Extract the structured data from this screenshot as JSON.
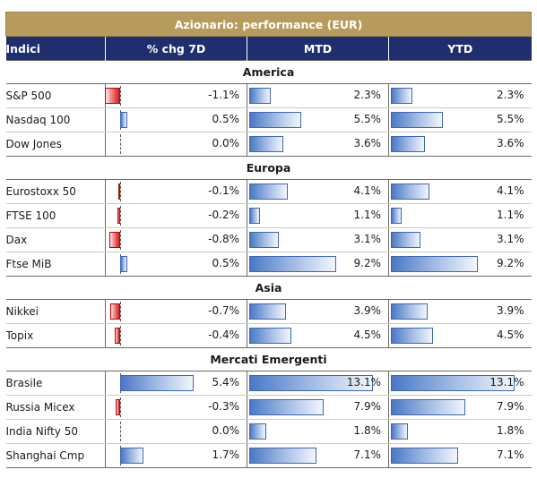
{
  "title": "Azionario: performance (EUR)",
  "headers": {
    "index": "Indici",
    "chg7d": "% chg 7D",
    "mtd": "MTD",
    "ytd": "YTD"
  },
  "colors": {
    "header_bg": "#1f2e6e",
    "title_bg": "#b79b5c",
    "positive_bar": "#4a78c6",
    "negative_bar": "#d41f1f"
  },
  "sections": [
    {
      "name": "America",
      "rows": [
        {
          "index": "S&P 500",
          "chg7d": -1.1,
          "chg7d_label": "-1.1%",
          "mtd": 2.3,
          "mtd_label": "2.3%",
          "ytd": 2.3,
          "ytd_label": "2.3%"
        },
        {
          "index": "Nasdaq 100",
          "chg7d": 0.5,
          "chg7d_label": "0.5%",
          "mtd": 5.5,
          "mtd_label": "5.5%",
          "ytd": 5.5,
          "ytd_label": "5.5%"
        },
        {
          "index": "Dow Jones",
          "chg7d": 0.0,
          "chg7d_label": "0.0%",
          "mtd": 3.6,
          "mtd_label": "3.6%",
          "ytd": 3.6,
          "ytd_label": "3.6%"
        }
      ]
    },
    {
      "name": "Europa",
      "rows": [
        {
          "index": "Eurostoxx 50",
          "chg7d": -0.1,
          "chg7d_label": "-0.1%",
          "mtd": 4.1,
          "mtd_label": "4.1%",
          "ytd": 4.1,
          "ytd_label": "4.1%"
        },
        {
          "index": "FTSE 100",
          "chg7d": -0.2,
          "chg7d_label": "-0.2%",
          "mtd": 1.1,
          "mtd_label": "1.1%",
          "ytd": 1.1,
          "ytd_label": "1.1%"
        },
        {
          "index": "Dax",
          "chg7d": -0.8,
          "chg7d_label": "-0.8%",
          "mtd": 3.1,
          "mtd_label": "3.1%",
          "ytd": 3.1,
          "ytd_label": "3.1%"
        },
        {
          "index": "Ftse MiB",
          "chg7d": 0.5,
          "chg7d_label": "0.5%",
          "mtd": 9.2,
          "mtd_label": "9.2%",
          "ytd": 9.2,
          "ytd_label": "9.2%"
        }
      ]
    },
    {
      "name": "Asia",
      "rows": [
        {
          "index": "Nikkei",
          "chg7d": -0.7,
          "chg7d_label": "-0.7%",
          "mtd": 3.9,
          "mtd_label": "3.9%",
          "ytd": 3.9,
          "ytd_label": "3.9%"
        },
        {
          "index": "Topix",
          "chg7d": -0.4,
          "chg7d_label": "-0.4%",
          "mtd": 4.5,
          "mtd_label": "4.5%",
          "ytd": 4.5,
          "ytd_label": "4.5%"
        }
      ]
    },
    {
      "name": "Mercati Emergenti",
      "rows": [
        {
          "index": "Brasile",
          "chg7d": 5.4,
          "chg7d_label": "5.4%",
          "mtd": 13.1,
          "mtd_label": "13.1%",
          "ytd": 13.1,
          "ytd_label": "13.1%"
        },
        {
          "index": "Russia Micex",
          "chg7d": -0.3,
          "chg7d_label": "-0.3%",
          "mtd": 7.9,
          "mtd_label": "7.9%",
          "ytd": 7.9,
          "ytd_label": "7.9%"
        },
        {
          "index": "India Nifty 50",
          "chg7d": 0.0,
          "chg7d_label": "0.0%",
          "mtd": 1.8,
          "mtd_label": "1.8%",
          "ytd": 1.8,
          "ytd_label": "1.8%"
        },
        {
          "index": "Shanghai Cmp",
          "chg7d": 1.7,
          "chg7d_label": "1.7%",
          "mtd": 7.1,
          "mtd_label": "7.1%",
          "ytd": 7.1,
          "ytd_label": "7.1%"
        }
      ]
    }
  ],
  "chart_data": {
    "type": "table",
    "title": "Azionario: performance (EUR)",
    "columns": [
      "Indici",
      "% chg 7D",
      "MTD",
      "YTD"
    ],
    "groups": [
      "America",
      "Europa",
      "Asia",
      "Mercati Emergenti"
    ]
  }
}
